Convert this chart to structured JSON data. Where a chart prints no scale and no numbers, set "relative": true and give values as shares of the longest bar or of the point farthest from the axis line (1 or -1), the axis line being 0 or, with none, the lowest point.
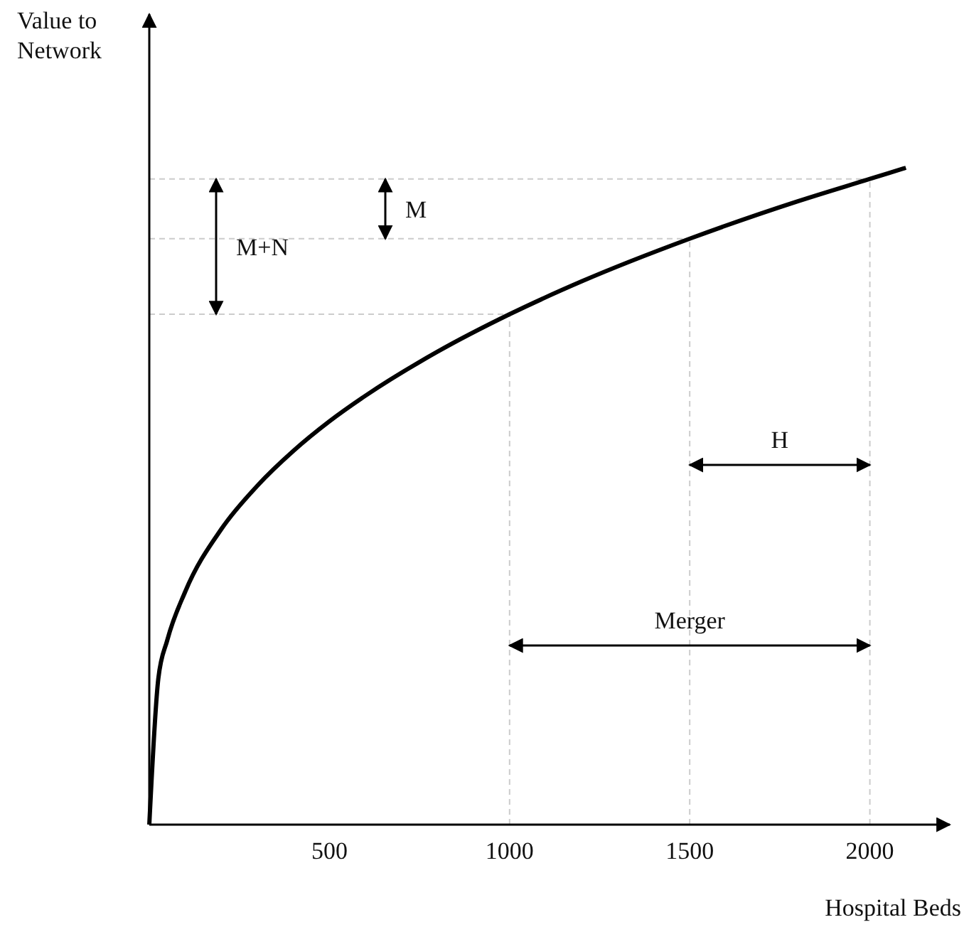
{
  "chart_data": {
    "type": "line",
    "relative": true,
    "xlabel": "Hospital Beds",
    "ylabel": "Value to Network",
    "x": [
      0,
      25,
      50,
      100,
      200,
      300,
      400,
      500,
      600,
      800,
      1000,
      1200,
      1500,
      1800,
      2000,
      2100
    ],
    "series": [
      {
        "color": "#000000",
        "values": [
          0,
          0.222,
          0.281,
          0.355,
          0.45,
          0.516,
          0.569,
          0.614,
          0.653,
          0.72,
          0.777,
          0.827,
          0.892,
          0.949,
          0.983,
          1
        ]
      }
    ],
    "xlim": [
      0,
      2210
    ],
    "xticks": [
      500,
      1000,
      1500,
      2000
    ],
    "grid": false,
    "legend": false,
    "marker": "none",
    "line_style": "solid",
    "ref_lines": [
      {
        "axis": "y",
        "value": 0.777,
        "color": "#cccccc",
        "line_style": "dashed"
      },
      {
        "axis": "y",
        "value": 0.892,
        "color": "#cccccc",
        "line_style": "dashed"
      },
      {
        "axis": "y",
        "value": 0.983,
        "color": "#cccccc",
        "line_style": "dashed"
      },
      {
        "axis": "x",
        "value": 1000,
        "color": "#cccccc",
        "line_style": "dashed"
      },
      {
        "axis": "x",
        "value": 1500,
        "color": "#cccccc",
        "line_style": "dashed"
      },
      {
        "axis": "x",
        "value": 2000,
        "color": "#cccccc",
        "line_style": "dashed"
      }
    ],
    "annotations": [
      "M",
      "M+N",
      "H",
      "Merger"
    ]
  }
}
